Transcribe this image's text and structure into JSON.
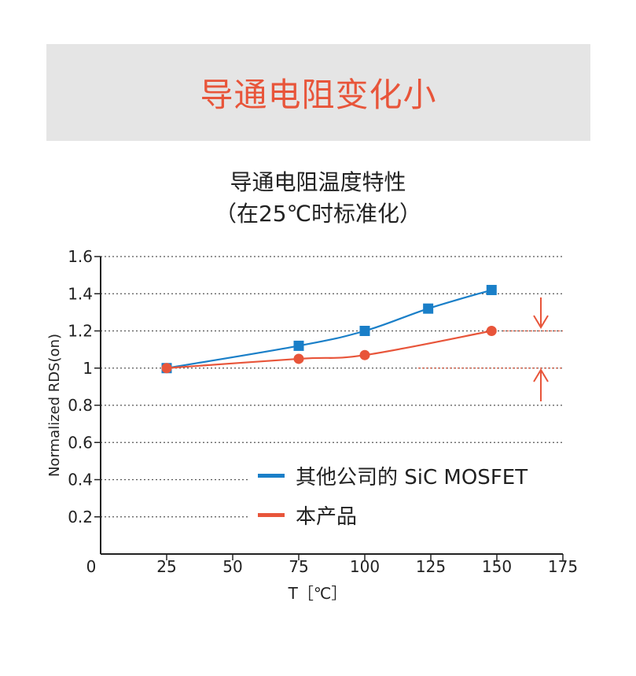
{
  "banner": {
    "title": "导通电阻变化小"
  },
  "chart_data": {
    "type": "line",
    "title": "导通电阻温度特性",
    "subtitle": "（在25℃时标准化）",
    "xlabel": "T［℃］",
    "ylabel": "Normalized RDS(on)",
    "xlim": [
      0,
      175
    ],
    "ylim": [
      0,
      1.6
    ],
    "x_ticks": [
      "0",
      "25",
      "50",
      "75",
      "100",
      "125",
      "150",
      "175"
    ],
    "y_ticks": [
      "0.2",
      "0.4",
      "0.6",
      "0.8",
      "1",
      "1.2",
      "1.4",
      "1.6"
    ],
    "grid": "horizontal dotted",
    "legend_position": "bottom-right",
    "series": [
      {
        "name": "其他公司的 SiC MOSFET",
        "color": "#1a7fc8",
        "marker": "square",
        "x": [
          25,
          75,
          100,
          124,
          148
        ],
        "y": [
          1.0,
          1.12,
          1.2,
          1.32,
          1.42
        ]
      },
      {
        "name": "本产品",
        "color": "#e8553a",
        "marker": "circle",
        "x": [
          25,
          75,
          100,
          148
        ],
        "y": [
          1.0,
          1.05,
          1.07,
          1.2
        ]
      }
    ],
    "annotations": {
      "arrow_color": "#e8553a"
    }
  }
}
